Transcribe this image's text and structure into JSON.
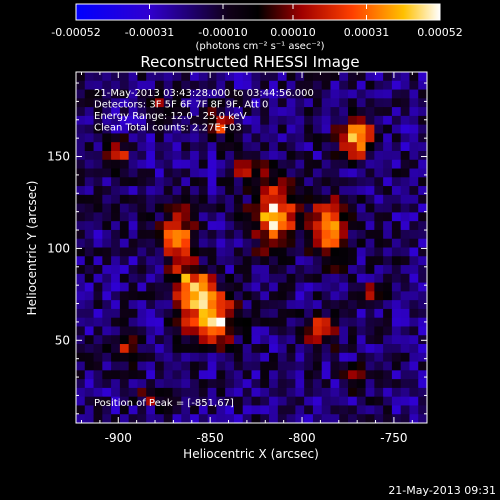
{
  "chart_data": {
    "type": "heatmap",
    "title": "Reconstructed RHESSI Image",
    "xlabel": "Heliocentric X (arcsec)",
    "ylabel": "Heliocentric Y (arcsec)",
    "x_ticks": [
      "-900",
      "-850",
      "-800",
      "-750"
    ],
    "x_tick_values": [
      -900,
      -850,
      -800,
      -750
    ],
    "y_ticks": [
      "50",
      "100",
      "150"
    ],
    "y_tick_values": [
      50,
      100,
      150
    ],
    "xlim": [
      -923,
      -732
    ],
    "ylim": [
      5,
      196
    ],
    "colorbar": {
      "ticks": [
        "-0.00052",
        "-0.00031",
        "-0.00010",
        "0.00010",
        "0.00031",
        "0.00052"
      ],
      "tick_values": [
        -0.00052,
        -0.00031,
        -0.0001,
        0.0001,
        0.00031,
        0.00052
      ],
      "range": [
        -0.00052,
        0.00052
      ],
      "units": "(photons cm⁻² s⁻¹ asec⁻²)"
    },
    "annotations": [
      "21-May-2013 03:43:28.000 to 03:44:56.000",
      "Detectors: 3F 5F 6F 7F 8F 9F, Att 0",
      "Energy Range: 12.0 - 25.0 keV",
      "Clean    Total counts: 2.27E+03"
    ],
    "peak_label": "Position of Peak = [-851,67]",
    "peak_position": [
      -851,
      67
    ],
    "sources": [
      {
        "x": -850,
        "y": 62,
        "amp": 1.0,
        "sx": 9,
        "sy": 9
      },
      {
        "x": -860,
        "y": 80,
        "amp": 0.75,
        "sx": 8,
        "sy": 8
      },
      {
        "x": -868,
        "y": 108,
        "amp": 0.65,
        "sx": 7,
        "sy": 10
      },
      {
        "x": -815,
        "y": 118,
        "amp": 0.85,
        "sx": 8,
        "sy": 14
      },
      {
        "x": -785,
        "y": 110,
        "amp": 0.8,
        "sx": 7,
        "sy": 12
      },
      {
        "x": -770,
        "y": 160,
        "amp": 0.9,
        "sx": 7,
        "sy": 7
      },
      {
        "x": -845,
        "y": 168,
        "amp": 0.6,
        "sx": 6,
        "sy": 5
      },
      {
        "x": -830,
        "y": 145,
        "amp": 0.55,
        "sx": 6,
        "sy": 5
      },
      {
        "x": -900,
        "y": 150,
        "amp": 0.5,
        "sx": 5,
        "sy": 6
      },
      {
        "x": -895,
        "y": 45,
        "amp": 0.45,
        "sx": 6,
        "sy": 6
      },
      {
        "x": -790,
        "y": 55,
        "amp": 0.5,
        "sx": 7,
        "sy": 7
      },
      {
        "x": -770,
        "y": 30,
        "amp": 0.35,
        "sx": 5,
        "sy": 5
      },
      {
        "x": -880,
        "y": 20,
        "amp": 0.4,
        "sx": 6,
        "sy": 4
      },
      {
        "x": -760,
        "y": 75,
        "amp": 0.4,
        "sx": 5,
        "sy": 5
      },
      {
        "x": -880,
        "y": 180,
        "amp": 0.35,
        "sx": 5,
        "sy": 4
      }
    ]
  },
  "footer": {
    "timestamp": "21-May-2013 09:31"
  }
}
